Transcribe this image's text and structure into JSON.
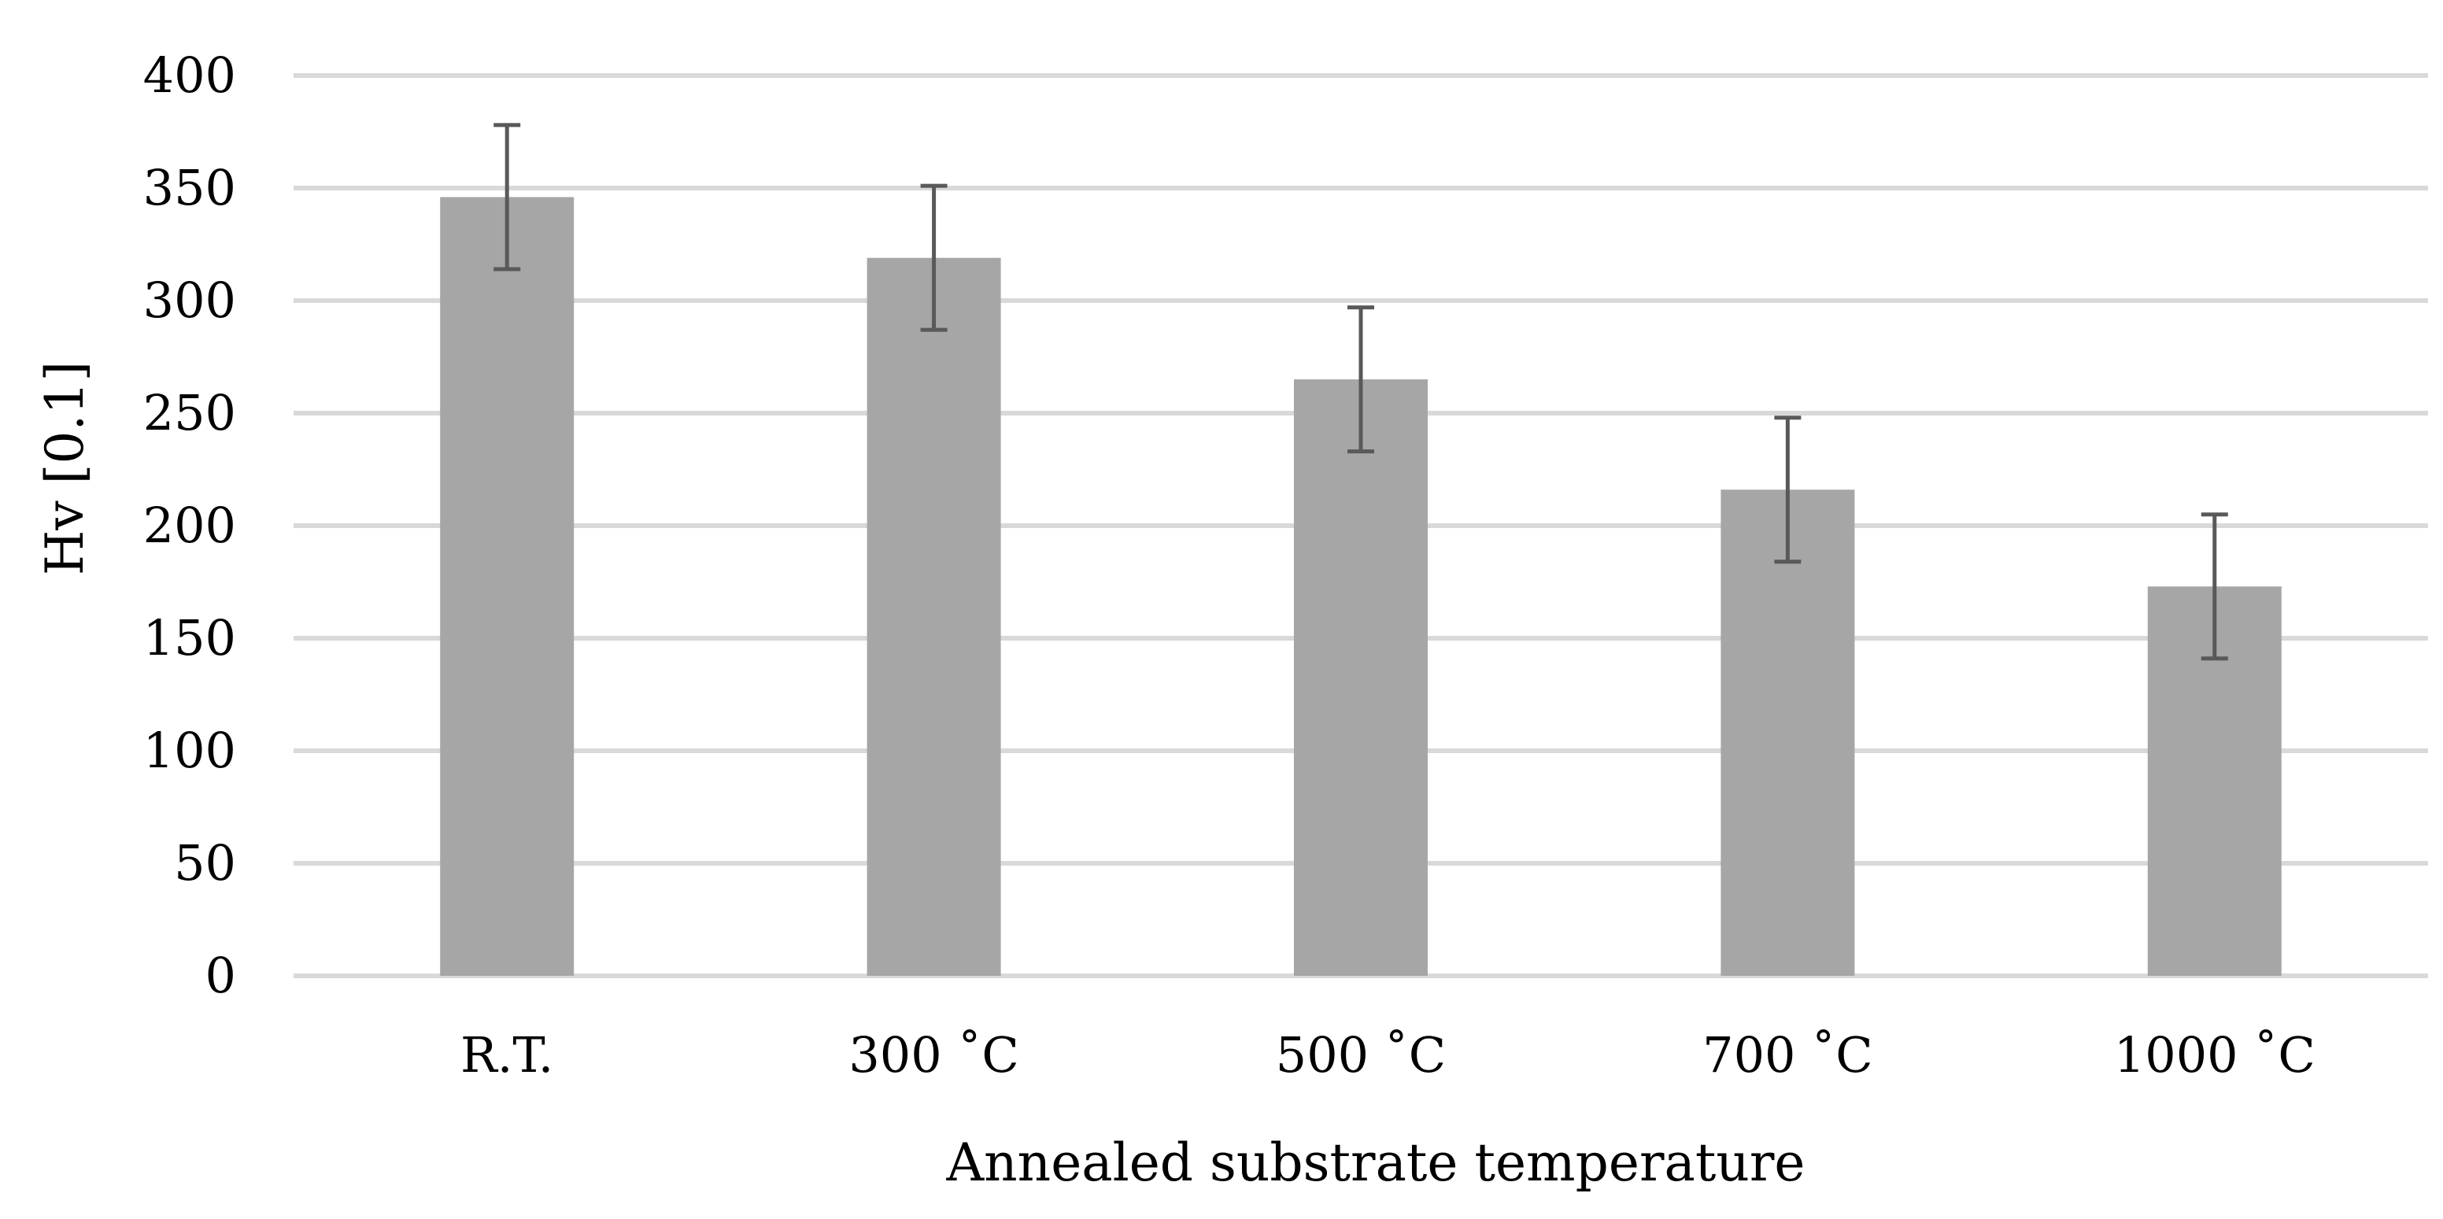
{
  "chart_data": {
    "type": "bar",
    "title": "",
    "xlabel": "Annealed substrate temperature",
    "ylabel": "Hv [0.1]",
    "categories": [
      "R.T.",
      "300 ˚C",
      "500 ˚C",
      "700 ˚C",
      "1000 ˚C"
    ],
    "values": [
      346,
      319,
      265,
      216,
      173
    ],
    "errors": [
      32,
      32,
      32,
      32,
      32
    ],
    "ylim": [
      0,
      400
    ],
    "yticks": [
      0,
      50,
      100,
      150,
      200,
      250,
      300,
      350,
      400
    ],
    "grid": true,
    "legend": "none",
    "colors": {
      "bar": "#a6a6a6",
      "error_bar": "#595959",
      "grid": "#d9d9d9",
      "text": "#000000"
    }
  }
}
